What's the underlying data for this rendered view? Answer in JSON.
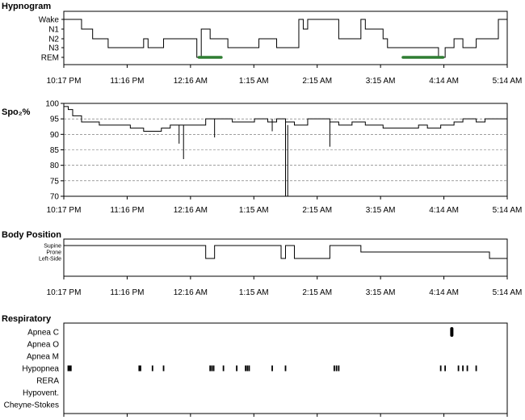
{
  "time_ticks": [
    "10:17 PM",
    "11:16 PM",
    "12:16 AM",
    "1:15 AM",
    "2:15 AM",
    "3:15 AM",
    "4:14 AM",
    "5:14 AM"
  ],
  "chart_data": [
    {
      "type": "line",
      "title": "Hypnogram",
      "stages": [
        "Wake",
        "N1",
        "N2",
        "N3",
        "REM"
      ],
      "x_range": [
        "10:17 PM",
        "5:14 AM"
      ],
      "x": [
        0,
        0.03,
        0.04,
        0.06,
        0.065,
        0.07,
        0.085,
        0.1,
        0.12,
        0.18,
        0.19,
        0.22,
        0.225,
        0.3,
        0.31,
        0.33,
        0.34,
        0.36,
        0.37,
        0.4,
        0.42,
        0.44,
        0.48,
        0.5,
        0.52,
        0.53,
        0.54,
        0.55,
        0.58,
        0.6,
        0.62,
        0.67,
        0.68,
        0.72,
        0.73,
        0.76,
        0.8,
        0.83,
        0.845,
        0.86,
        0.88,
        0.9,
        0.93,
        0.95,
        0.98,
        0.99,
        1.0
      ],
      "stage_index": [
        0,
        0,
        1,
        1,
        2,
        2,
        2,
        3,
        3,
        2,
        3,
        3,
        2,
        4,
        1,
        2,
        2,
        2,
        3,
        3,
        3,
        2,
        3,
        3,
        3,
        0,
        1,
        0,
        0,
        0,
        2,
        0,
        1,
        2,
        3,
        3,
        3,
        3,
        4,
        3,
        2,
        3,
        2,
        2,
        0,
        0,
        0
      ],
      "rem_periods": [
        [
          0.305,
          0.355
        ],
        [
          0.765,
          0.855
        ]
      ]
    },
    {
      "type": "line",
      "title": "Spo₂%",
      "ylim": [
        70,
        100
      ],
      "yticks": [
        100,
        95,
        90,
        85,
        80,
        75,
        70
      ],
      "grid": "dashed horizontal",
      "x": [
        0,
        0.01,
        0.02,
        0.04,
        0.06,
        0.08,
        0.1,
        0.12,
        0.15,
        0.18,
        0.2,
        0.22,
        0.24,
        0.26,
        0.28,
        0.3,
        0.32,
        0.35,
        0.38,
        0.4,
        0.43,
        0.46,
        0.48,
        0.5,
        0.52,
        0.55,
        0.58,
        0.6,
        0.62,
        0.65,
        0.68,
        0.7,
        0.72,
        0.75,
        0.78,
        0.8,
        0.82,
        0.85,
        0.88,
        0.9,
        0.93,
        0.95,
        0.98,
        1.0
      ],
      "values": [
        99,
        98,
        96,
        94,
        94,
        93,
        93,
        93,
        92,
        91,
        91,
        92,
        93,
        93,
        93,
        93,
        95,
        95,
        94,
        94,
        95,
        94,
        95,
        94,
        93,
        95,
        95,
        94,
        93,
        94,
        93,
        93,
        92,
        92,
        92,
        93,
        92,
        93,
        94,
        95,
        94,
        95,
        95,
        95
      ],
      "desaturations": [
        {
          "x": 0.26,
          "min": 87
        },
        {
          "x": 0.27,
          "min": 82
        },
        {
          "x": 0.34,
          "min": 89
        },
        {
          "x": 0.47,
          "min": 91
        },
        {
          "x": 0.5,
          "min": 70
        },
        {
          "x": 0.505,
          "min": 70
        },
        {
          "x": 0.6,
          "min": 86
        }
      ]
    },
    {
      "type": "line",
      "title": "Body Position",
      "positions": [
        "Supine",
        "Prone",
        "Left-Side"
      ],
      "x": [
        0,
        0.32,
        0.34,
        0.42,
        0.49,
        0.5,
        0.51,
        0.52,
        0.53,
        0.6,
        0.64,
        0.67,
        0.96,
        1.0
      ],
      "position_index": [
        0,
        2,
        0,
        0,
        2,
        0,
        0,
        2,
        2,
        0,
        0,
        1,
        2,
        2
      ]
    },
    {
      "type": "scatter",
      "title": "Respiratory",
      "event_types": [
        "Apnea C",
        "Apnea O",
        "Apnea M",
        "Hypopnea",
        "RERA",
        "Hypovent.",
        "Cheyne-Stokes"
      ],
      "events": [
        {
          "type": "Apnea C",
          "x": 0.875
        },
        {
          "type": "Hypopnea",
          "x": 0.01
        },
        {
          "type": "Hypopnea",
          "x": 0.013
        },
        {
          "type": "Hypopnea",
          "x": 0.016
        },
        {
          "type": "Hypopnea",
          "x": 0.17
        },
        {
          "type": "Hypopnea",
          "x": 0.173
        },
        {
          "type": "Hypopnea",
          "x": 0.2
        },
        {
          "type": "Hypopnea",
          "x": 0.225
        },
        {
          "type": "Hypopnea",
          "x": 0.33
        },
        {
          "type": "Hypopnea",
          "x": 0.334
        },
        {
          "type": "Hypopnea",
          "x": 0.338
        },
        {
          "type": "Hypopnea",
          "x": 0.36
        },
        {
          "type": "Hypopnea",
          "x": 0.39
        },
        {
          "type": "Hypopnea",
          "x": 0.41
        },
        {
          "type": "Hypopnea",
          "x": 0.414
        },
        {
          "type": "Hypopnea",
          "x": 0.418
        },
        {
          "type": "Hypopnea",
          "x": 0.47
        },
        {
          "type": "Hypopnea",
          "x": 0.5
        },
        {
          "type": "Hypopnea",
          "x": 0.61
        },
        {
          "type": "Hypopnea",
          "x": 0.615
        },
        {
          "type": "Hypopnea",
          "x": 0.62
        },
        {
          "type": "Hypopnea",
          "x": 0.85
        },
        {
          "type": "Hypopnea",
          "x": 0.86
        },
        {
          "type": "Hypopnea",
          "x": 0.89
        },
        {
          "type": "Hypopnea",
          "x": 0.9
        },
        {
          "type": "Hypopnea",
          "x": 0.91
        },
        {
          "type": "Hypopnea",
          "x": 0.93
        }
      ]
    }
  ],
  "colors": {
    "trace": "#000000",
    "rem": "#2e7d32",
    "grid": "#666666"
  }
}
